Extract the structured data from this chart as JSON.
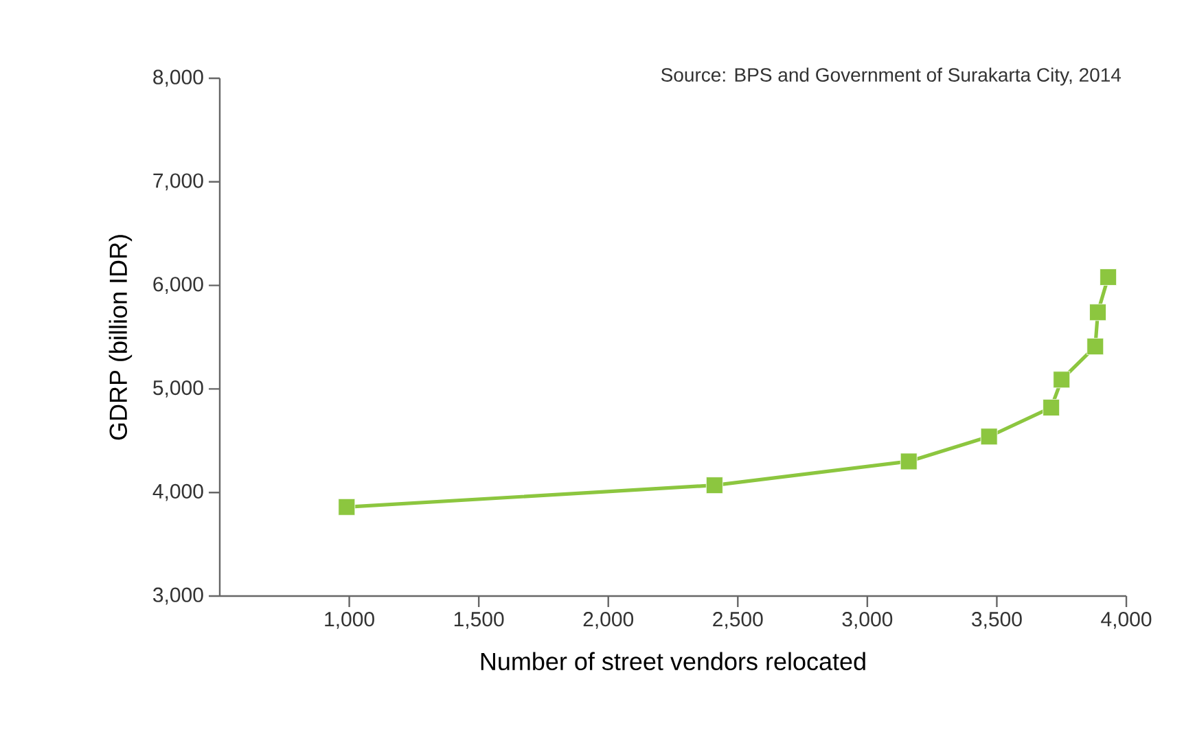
{
  "chart_data": {
    "type": "line",
    "xlabel": "Number of street vendors relocated",
    "ylabel": "GDRP (billion IDR)",
    "annotations": [
      "Source: BPS and Government of Surakarta City, 2014"
    ],
    "x": [
      990,
      2410,
      3160,
      3470,
      3710,
      3750,
      3880,
      3890,
      3930
    ],
    "series": [
      {
        "color": "#8cc63f",
        "values": [
          3860,
          4070,
          4300,
          4540,
          4820,
          5090,
          5410,
          5740,
          6080
        ]
      }
    ],
    "xlim": [
      500,
      4000
    ],
    "xticks": [
      {
        "value": 1000,
        "label": "1,000"
      },
      {
        "value": 1500,
        "label": "1,500"
      },
      {
        "value": 2000,
        "label": "2,000"
      },
      {
        "value": 2500,
        "label": "2,500"
      },
      {
        "value": 3000,
        "label": "3,000"
      },
      {
        "value": 3500,
        "label": "3,500"
      },
      {
        "value": 4000,
        "label": "4,000"
      }
    ],
    "ylim": [
      3000,
      8000
    ],
    "yticks": [
      {
        "value": 3000,
        "label": "3,000"
      },
      {
        "value": 4000,
        "label": "4,000"
      },
      {
        "value": 5000,
        "label": "5,000"
      },
      {
        "value": 6000,
        "label": "6,000"
      },
      {
        "value": 7000,
        "label": "7,000"
      },
      {
        "value": 8000,
        "label": "8,000"
      }
    ],
    "grid": false,
    "marker": "square",
    "line_style": "solid"
  }
}
